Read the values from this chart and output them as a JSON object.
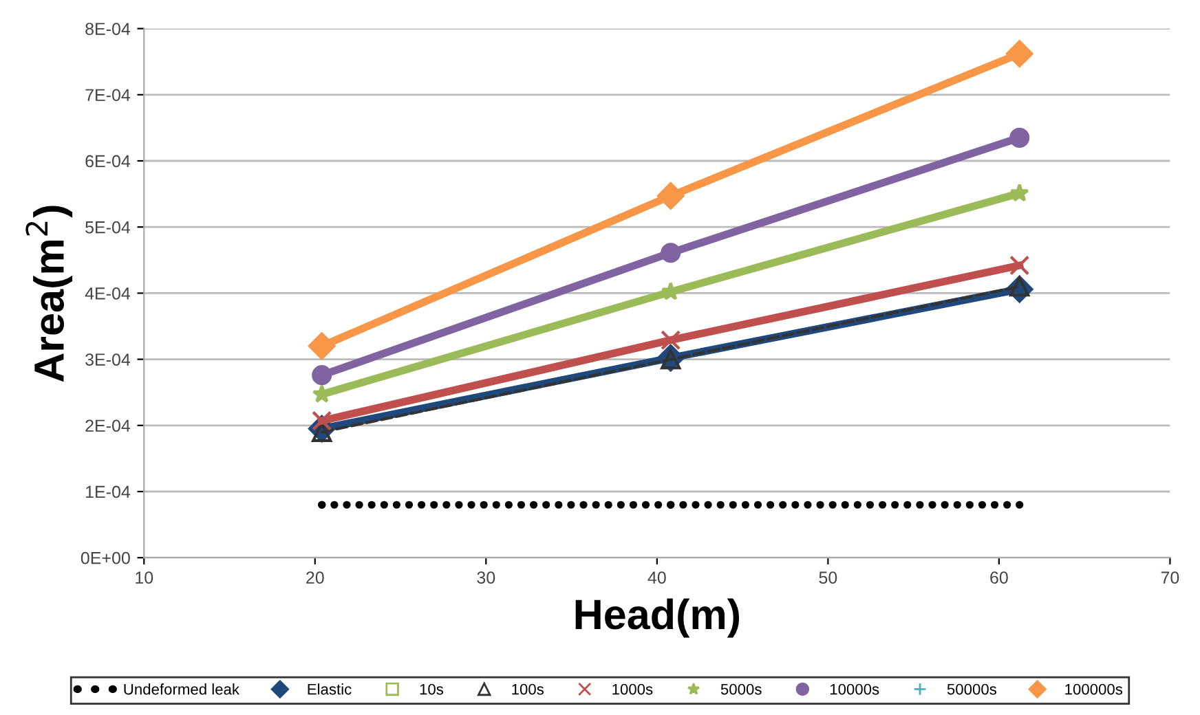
{
  "chart_data": {
    "type": "line",
    "xlabel": "Head(m)",
    "ylabel": "Area(m$^{2}$)",
    "x": [
      20.4,
      40.8,
      61.2
    ],
    "xlim": [
      10,
      70
    ],
    "xticks": [
      10,
      20,
      30,
      40,
      50,
      60,
      70
    ],
    "ylim": [
      0,
      0.0008
    ],
    "yticks": [
      {
        "value": 0,
        "label": "0E+00"
      },
      {
        "value": 0.0001,
        "label": "1E-04"
      },
      {
        "value": 0.0002,
        "label": "2E-04"
      },
      {
        "value": 0.0003,
        "label": "3E-04"
      },
      {
        "value": 0.0004,
        "label": "4E-04"
      },
      {
        "value": 0.0005,
        "label": "5E-04"
      },
      {
        "value": 0.0006,
        "label": "6E-04"
      },
      {
        "value": 0.0007,
        "label": "7E-04"
      },
      {
        "value": 0.0008,
        "label": "8E-04"
      }
    ],
    "grid": "y",
    "legend": "bottom",
    "series": [
      {
        "name": "Undeformed leak",
        "color": "#000000",
        "values": [
          8e-05,
          8e-05,
          8e-05
        ],
        "marker": "circle",
        "line_style": "dotted"
      },
      {
        "name": "Elastic",
        "color": "#1f497d",
        "values": [
          0.000195,
          0.000302,
          0.000406
        ],
        "marker": "diamond"
      },
      {
        "name": "10s",
        "color": "#9bbb59",
        "values": [
          null,
          null,
          null
        ],
        "marker": "square"
      },
      {
        "name": "100s",
        "color": "#333333",
        "values": [
          0.00019,
          0.0003,
          0.00041
        ],
        "marker": "triangle",
        "line_style": "dashed"
      },
      {
        "name": "1000s",
        "color": "#c0504d",
        "values": [
          0.000207,
          0.000329,
          0.000442
        ],
        "marker": "cross"
      },
      {
        "name": "5000s",
        "color": "#9bbb59",
        "values": [
          0.000247,
          0.000402,
          0.000551
        ],
        "marker": "star"
      },
      {
        "name": "10000s",
        "color": "#8064a2",
        "values": [
          0.000276,
          0.000461,
          0.000635
        ],
        "marker": "circle"
      },
      {
        "name": "50000s",
        "color": "#4bacc6",
        "values": [
          null,
          null,
          null
        ],
        "marker": "plus"
      },
      {
        "name": "100000s",
        "color": "#f79646",
        "values": [
          0.00032,
          0.000547,
          0.000762
        ],
        "marker": "diamond"
      }
    ]
  }
}
